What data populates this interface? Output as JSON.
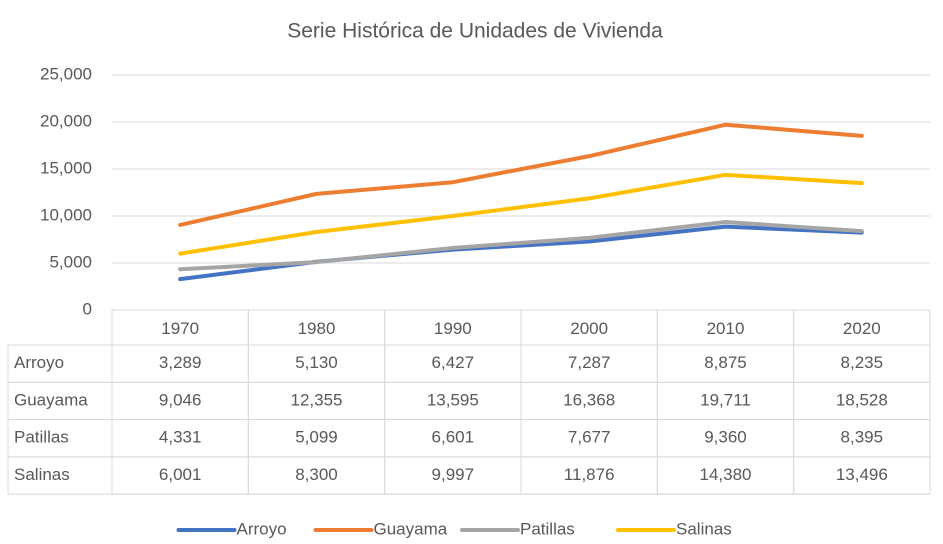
{
  "chart_data": {
    "type": "line",
    "title": "Serie Histórica de Unidades de Vivienda",
    "categories": [
      "1970",
      "1980",
      "1990",
      "2000",
      "2010",
      "2020"
    ],
    "series": [
      {
        "name": "Arroyo",
        "color": "#4472c4",
        "values": [
          3289,
          5130,
          6427,
          7287,
          8875,
          8235
        ],
        "value_labels": [
          "3,289",
          "5,130",
          "6,427",
          "7,287",
          "8,875",
          "8,235"
        ]
      },
      {
        "name": "Guayama",
        "color": "#ed7d31",
        "values": [
          9046,
          12355,
          13595,
          16368,
          19711,
          18528
        ],
        "value_labels": [
          "9,046",
          "12,355",
          "13,595",
          "16,368",
          "19,711",
          "18,528"
        ]
      },
      {
        "name": "Patillas",
        "color": "#a5a5a5",
        "values": [
          4331,
          5099,
          6601,
          7677,
          9360,
          8395
        ],
        "value_labels": [
          "4,331",
          "5,099",
          "6,601",
          "7,677",
          "9,360",
          "8,395"
        ]
      },
      {
        "name": "Salinas",
        "color": "#ffc000",
        "values": [
          6001,
          8300,
          9997,
          11876,
          14380,
          13496
        ],
        "value_labels": [
          "6,001",
          "8,300",
          "9,997",
          "11,876",
          "14,380",
          "13,496"
        ]
      }
    ],
    "ylim": [
      0,
      25000
    ],
    "yticks": [
      0,
      {
        "value": 5000,
        "label": "5,000"
      },
      {
        "value": 10000,
        "label": "10,000"
      },
      {
        "value": 15000,
        "label": "15,000"
      },
      {
        "value": 20000,
        "label": "20,000"
      },
      {
        "value": 25000,
        "label": "25,000"
      }
    ],
    "grid": true,
    "legend": "bottom"
  }
}
